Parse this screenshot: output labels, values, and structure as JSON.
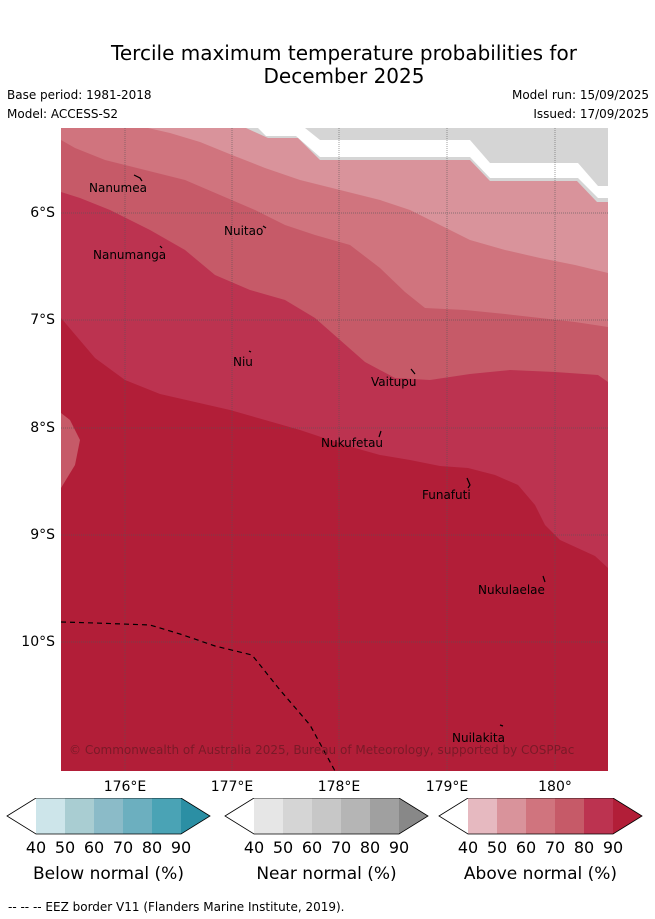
{
  "title_line1": "Tercile maximum temperature probabilities for",
  "title_line2": "December 2025",
  "base_period": "Base period: 1981-2018",
  "model": "Model: ACCESS-S2",
  "model_run": "Model run: 15/09/2025",
  "issued": "Issued: 17/09/2025",
  "lat_labels": [
    "6°S",
    "7°S",
    "8°S",
    "9°S",
    "10°S"
  ],
  "lon_labels": [
    "176°E",
    "177°E",
    "178°E",
    "179°E",
    "180°"
  ],
  "places": [
    "Nanumea",
    "Nanumanga",
    "Nuitao",
    "Niu",
    "Vaitupu",
    "Nukufetau",
    "Funafuti",
    "Nukulaelae",
    "Nuilakita"
  ],
  "copyright": "© Commonwealth of Australia 2025, Bureau of Meteorology, supported by COSPPac",
  "colorbars": [
    {
      "label": "Below normal (%)",
      "ticks": [
        "40",
        "50",
        "60",
        "70",
        "80",
        "90"
      ],
      "colors": [
        "#ffffff",
        "#cde5ea",
        "#a9cdd2",
        "#8bbbc8",
        "#6cafbf",
        "#4aa3b5",
        "#2b8fa4"
      ]
    },
    {
      "label": "Near normal (%)",
      "ticks": [
        "40",
        "50",
        "60",
        "70",
        "80",
        "90"
      ],
      "colors": [
        "#ffffff",
        "#e6e6e6",
        "#d5d5d5",
        "#c7c7c7",
        "#b5b5b5",
        "#a0a0a0",
        "#888888"
      ]
    },
    {
      "label": "Above normal (%)",
      "ticks": [
        "40",
        "50",
        "60",
        "70",
        "80",
        "90"
      ],
      "colors": [
        "#ffffff",
        "#e6b9c0",
        "#d9939b",
        "#d0747e",
        "#c65a68",
        "#bc3350",
        "#b21e38"
      ]
    }
  ],
  "footnote": "--  --  -- EEZ border V11 (Flanders Marine Institute, 2019)."
}
